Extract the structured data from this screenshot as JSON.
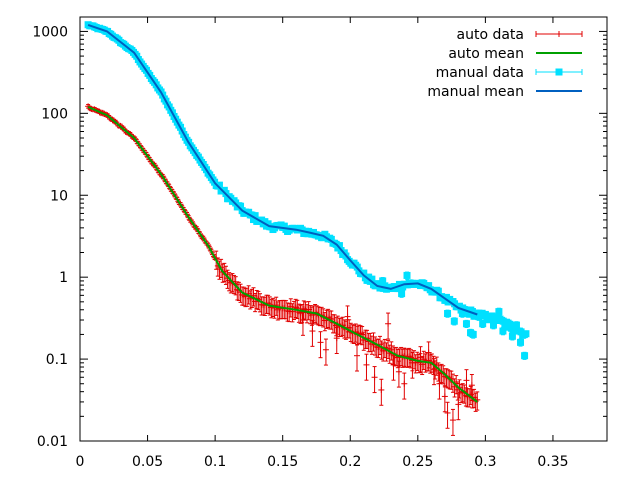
{
  "chart_data": {
    "type": "scatter",
    "title": "",
    "xlabel": "",
    "ylabel": "",
    "x_scale": "linear",
    "y_scale": "log",
    "xlim": [
      0,
      0.39
    ],
    "ylim": [
      0.01,
      1500
    ],
    "x_ticks": [
      0,
      0.05,
      0.1,
      0.15,
      0.2,
      0.25,
      0.3,
      0.35
    ],
    "x_tick_labels": [
      "0",
      "0.05",
      "0.1",
      "0.15",
      "0.2",
      "0.25",
      "0.3",
      "0.35"
    ],
    "y_ticks": [
      0.01,
      0.1,
      1,
      10,
      100,
      1000
    ],
    "y_tick_labels": [
      "0.01",
      "0.1",
      "1",
      "10",
      "100",
      "1000"
    ],
    "grid": false,
    "legend_position": "top-right",
    "series": [
      {
        "name": "auto data",
        "kind": "points-errorbars",
        "marker": "plus",
        "color": "#e00000",
        "x_start": 0.006,
        "x_end": 0.294,
        "x_step": 0.0012,
        "profile": [
          [
            0.006,
            120
          ],
          [
            0.02,
            95
          ],
          [
            0.04,
            50
          ],
          [
            0.06,
            18
          ],
          [
            0.08,
            5.5
          ],
          [
            0.095,
            2.4
          ],
          [
            0.105,
            1.2
          ],
          [
            0.12,
            0.65
          ],
          [
            0.14,
            0.45
          ],
          [
            0.16,
            0.4
          ],
          [
            0.175,
            0.36
          ],
          [
            0.19,
            0.27
          ],
          [
            0.205,
            0.2
          ],
          [
            0.22,
            0.15
          ],
          [
            0.235,
            0.11
          ],
          [
            0.25,
            0.095
          ],
          [
            0.26,
            0.09
          ],
          [
            0.27,
            0.065
          ],
          [
            0.28,
            0.045
          ],
          [
            0.294,
            0.03
          ]
        ],
        "outliers": [
          [
            0.165,
            0.3
          ],
          [
            0.172,
            0.22
          ],
          [
            0.178,
            0.16
          ],
          [
            0.182,
            0.13
          ],
          [
            0.19,
            0.18
          ],
          [
            0.198,
            0.33
          ],
          [
            0.205,
            0.11
          ],
          [
            0.212,
            0.085
          ],
          [
            0.218,
            0.06
          ],
          [
            0.223,
            0.042
          ],
          [
            0.228,
            0.27
          ],
          [
            0.232,
            0.085
          ],
          [
            0.236,
            0.07
          ],
          [
            0.24,
            0.05
          ],
          [
            0.246,
            0.09
          ],
          [
            0.252,
            0.105
          ],
          [
            0.258,
            0.12
          ],
          [
            0.262,
            0.075
          ],
          [
            0.266,
            0.05
          ],
          [
            0.27,
            0.035
          ],
          [
            0.272,
            0.022
          ],
          [
            0.276,
            0.018
          ],
          [
            0.28,
            0.028
          ],
          [
            0.286,
            0.055
          ],
          [
            0.29,
            0.048
          ]
        ]
      },
      {
        "name": "auto mean",
        "kind": "line",
        "color": "#00a000",
        "points": [
          [
            0.006,
            120
          ],
          [
            0.02,
            95
          ],
          [
            0.04,
            50
          ],
          [
            0.06,
            18
          ],
          [
            0.08,
            5.5
          ],
          [
            0.095,
            2.4
          ],
          [
            0.105,
            1.2
          ],
          [
            0.12,
            0.65
          ],
          [
            0.14,
            0.45
          ],
          [
            0.16,
            0.4
          ],
          [
            0.175,
            0.36
          ],
          [
            0.19,
            0.27
          ],
          [
            0.205,
            0.2
          ],
          [
            0.22,
            0.15
          ],
          [
            0.235,
            0.11
          ],
          [
            0.25,
            0.095
          ],
          [
            0.26,
            0.09
          ],
          [
            0.27,
            0.065
          ],
          [
            0.28,
            0.045
          ],
          [
            0.294,
            0.03
          ]
        ]
      },
      {
        "name": "manual data",
        "kind": "points-errorbars",
        "marker": "square",
        "color": "#00e0ff",
        "x_start": 0.006,
        "x_end": 0.33,
        "x_step": 0.0012,
        "profile": [
          [
            0.006,
            1200
          ],
          [
            0.02,
            1000
          ],
          [
            0.04,
            550
          ],
          [
            0.06,
            180
          ],
          [
            0.08,
            45
          ],
          [
            0.1,
            14
          ],
          [
            0.12,
            6.5
          ],
          [
            0.14,
            4.2
          ],
          [
            0.16,
            3.8
          ],
          [
            0.17,
            3.5
          ],
          [
            0.18,
            3.2
          ],
          [
            0.19,
            2.5
          ],
          [
            0.2,
            1.6
          ],
          [
            0.21,
            1.05
          ],
          [
            0.22,
            0.78
          ],
          [
            0.23,
            0.72
          ],
          [
            0.24,
            0.82
          ],
          [
            0.25,
            0.84
          ],
          [
            0.26,
            0.72
          ],
          [
            0.27,
            0.55
          ],
          [
            0.28,
            0.42
          ],
          [
            0.294,
            0.35
          ],
          [
            0.31,
            0.3
          ],
          [
            0.33,
            0.2
          ]
        ],
        "outliers": [
          [
            0.295,
            0.33
          ],
          [
            0.298,
            0.27
          ],
          [
            0.302,
            0.31
          ],
          [
            0.306,
            0.26
          ],
          [
            0.31,
            0.38
          ],
          [
            0.313,
            0.22
          ],
          [
            0.316,
            0.25
          ],
          [
            0.32,
            0.19
          ],
          [
            0.323,
            0.26
          ],
          [
            0.326,
            0.16
          ],
          [
            0.329,
            0.11
          ],
          [
            0.272,
            0.36
          ],
          [
            0.277,
            0.29
          ],
          [
            0.283,
            0.36
          ],
          [
            0.286,
            0.27
          ],
          [
            0.289,
            0.21
          ],
          [
            0.291,
            0.2
          ],
          [
            0.242,
            1.05
          ],
          [
            0.238,
            0.63
          ],
          [
            0.224,
            0.9
          ]
        ]
      },
      {
        "name": "manual mean",
        "kind": "line",
        "color": "#0060c0",
        "points": [
          [
            0.006,
            1200
          ],
          [
            0.02,
            1000
          ],
          [
            0.04,
            550
          ],
          [
            0.06,
            180
          ],
          [
            0.08,
            45
          ],
          [
            0.1,
            14
          ],
          [
            0.12,
            6.5
          ],
          [
            0.14,
            4.2
          ],
          [
            0.16,
            3.8
          ],
          [
            0.17,
            3.5
          ],
          [
            0.18,
            3.2
          ],
          [
            0.19,
            2.5
          ],
          [
            0.2,
            1.6
          ],
          [
            0.21,
            1.05
          ],
          [
            0.22,
            0.78
          ],
          [
            0.23,
            0.72
          ],
          [
            0.24,
            0.82
          ],
          [
            0.25,
            0.84
          ],
          [
            0.26,
            0.72
          ],
          [
            0.27,
            0.55
          ],
          [
            0.28,
            0.42
          ],
          [
            0.294,
            0.35
          ]
        ]
      }
    ]
  }
}
